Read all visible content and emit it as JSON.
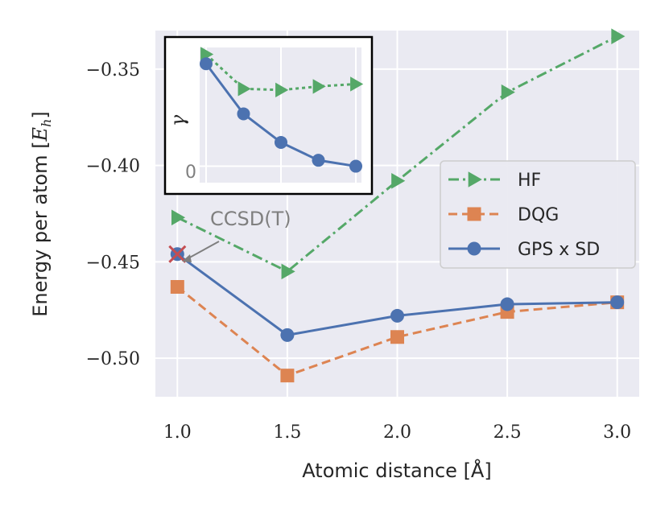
{
  "chart_data": {
    "type": "line",
    "title": "",
    "xlabel": "Atomic distance [Å]",
    "ylabel": "Energy per atom [",
    "ylabel_unit_sym": "E",
    "ylabel_unit_sub": "h",
    "ylabel_close": "]",
    "xlim": [
      0.9,
      3.1
    ],
    "ylim": [
      -0.52,
      -0.33
    ],
    "xticks": [
      1.0,
      1.5,
      2.0,
      2.5,
      3.0
    ],
    "xtick_labels": [
      "1.0",
      "1.5",
      "2.0",
      "2.5",
      "3.0"
    ],
    "yticks": [
      -0.35,
      -0.4,
      -0.45,
      -0.5
    ],
    "ytick_labels": [
      "−0.35",
      "−0.40",
      "−0.45",
      "−0.50"
    ],
    "grid": true,
    "legend_position": "center-right",
    "series": [
      {
        "name": "HF",
        "color": "#55a868",
        "linestyle": "dashdot",
        "marker": "triangle-right",
        "x": [
          1.0,
          1.5,
          2.0,
          2.5,
          3.0
        ],
        "y": [
          -0.427,
          -0.455,
          -0.408,
          -0.362,
          -0.333
        ]
      },
      {
        "name": "DQG",
        "color": "#dd8452",
        "linestyle": "dashed",
        "marker": "square",
        "x": [
          1.0,
          1.5,
          2.0,
          2.5,
          3.0
        ],
        "y": [
          -0.463,
          -0.509,
          -0.489,
          -0.476,
          -0.471
        ]
      },
      {
        "name": "GPS x SD",
        "color": "#4c72b0",
        "linestyle": "solid",
        "marker": "circle",
        "x": [
          1.0,
          1.5,
          2.0,
          2.5,
          3.0
        ],
        "y": [
          -0.446,
          -0.488,
          -0.478,
          -0.472,
          -0.471
        ]
      }
    ],
    "reference_point": {
      "name": "CCSD(T)",
      "x": 1.0,
      "y": -0.446,
      "color": "#c44e52",
      "marker": "x"
    },
    "annotation": {
      "text": "CCSD(T)"
    },
    "inset": {
      "ylabel": "γ",
      "ytick_label": "0",
      "series": [
        {
          "name": "HF",
          "color": "#55a868",
          "linestyle": "dotted",
          "marker": "triangle-right",
          "y": [
            0.97,
            0.68,
            0.67,
            0.7,
            0.72
          ]
        },
        {
          "name": "GPS x SD",
          "color": "#4c72b0",
          "linestyle": "solid",
          "marker": "circle",
          "y": [
            0.89,
            0.47,
            0.23,
            0.08,
            0.03
          ]
        }
      ]
    }
  }
}
